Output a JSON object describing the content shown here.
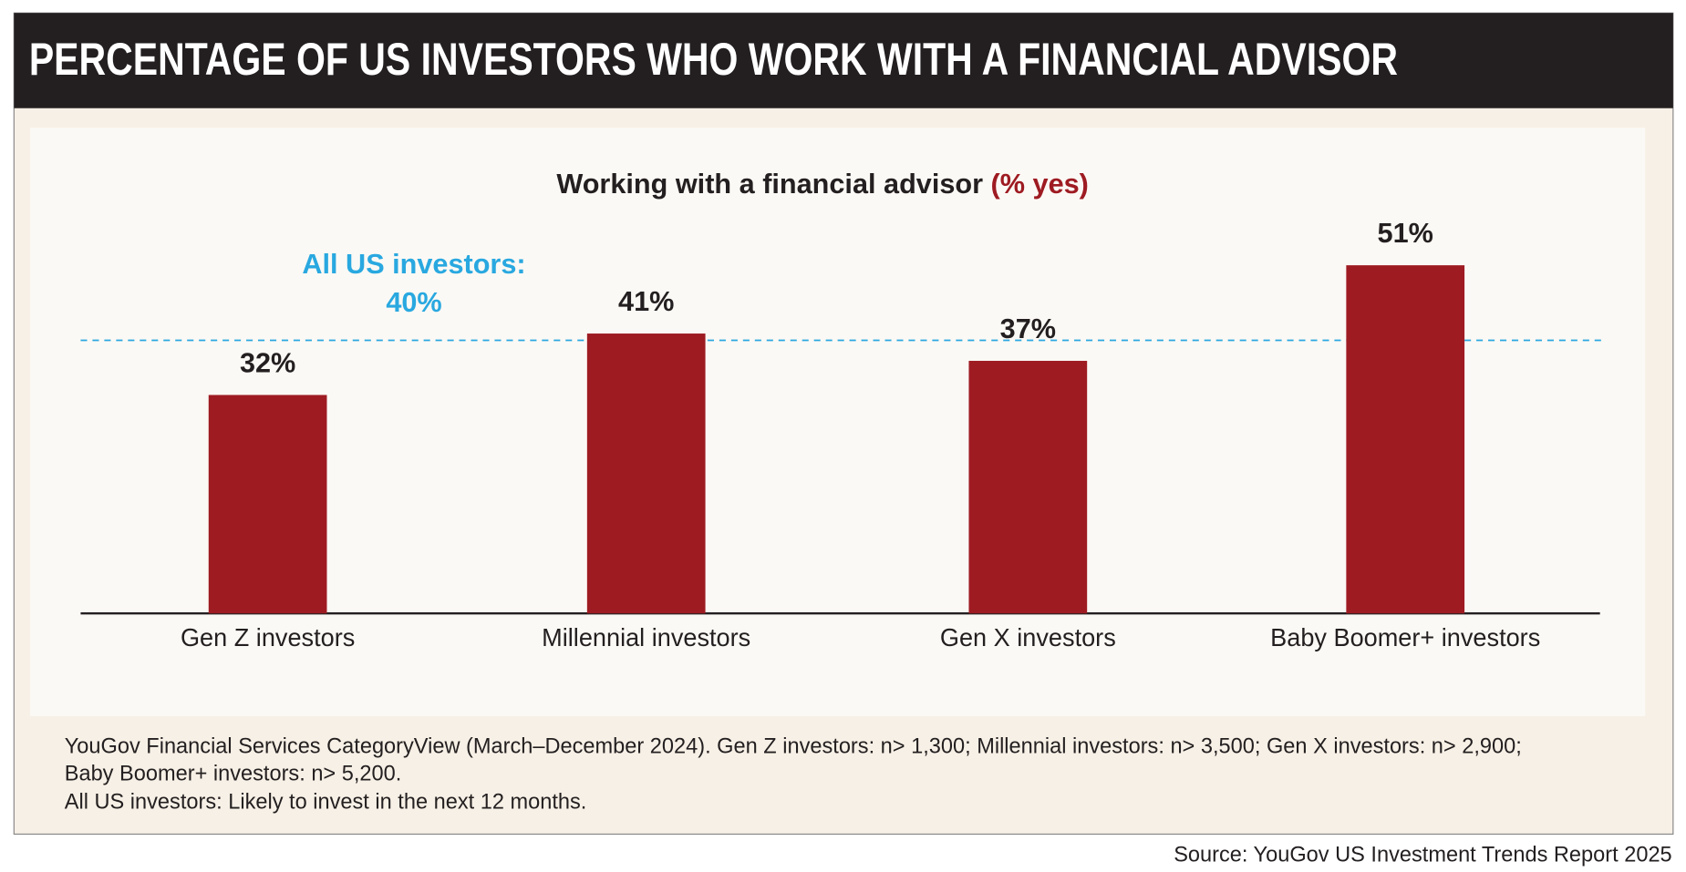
{
  "chart_data": {
    "type": "bar",
    "title": "PERCENTAGE OF US INVESTORS WHO WORK WITH A FINANCIAL ADVISOR",
    "subtitle": "Working with a financial advisor",
    "subtitle_highlight": "(% yes)",
    "categories": [
      "Gen Z investors",
      "Millennial investors",
      "Gen X investors",
      "Baby Boomer+ investors"
    ],
    "values": [
      32,
      41,
      37,
      51
    ],
    "value_labels": [
      "32%",
      "41%",
      "37%",
      "51%"
    ],
    "color": "#9e1b22",
    "reference": {
      "label": "All US investors:",
      "value": 40,
      "value_label": "40%",
      "color": "#29a8e0"
    },
    "notes": [
      "YouGov Financial Services CategoryView (March–December 2024). Gen Z investors: n> 1,300; Millennial investors: n> 3,500; Gen X investors: n> 2,900;",
      "Baby Boomer+ investors: n> 5,200.",
      "All US investors: Likely to invest in the next 12 months."
    ],
    "source": "Source: YouGov US Investment Trends Report 2025"
  }
}
